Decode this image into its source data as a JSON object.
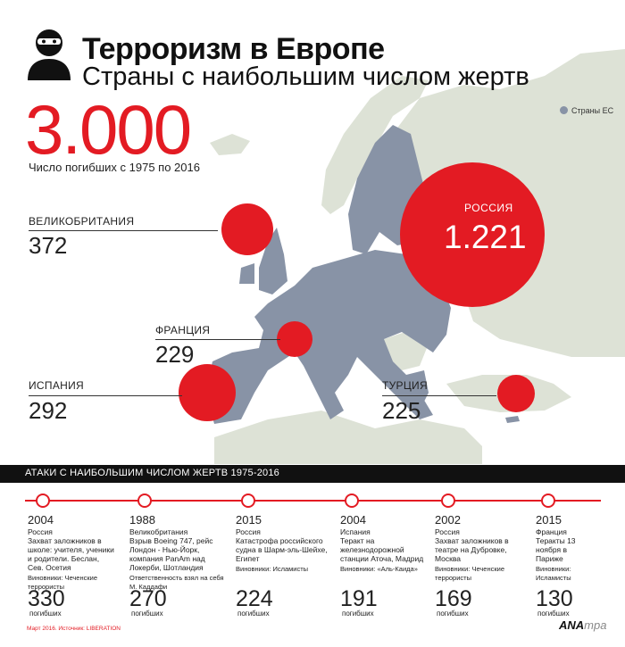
{
  "header": {
    "title": "Терроризм в Европе",
    "subtitle": "Страны с наибольшим числом жертв"
  },
  "total": {
    "value": "3.000",
    "label": "Число погибших с 1975 по 2016"
  },
  "legend": {
    "label": "Страны ЕС",
    "color": "#8893a6"
  },
  "countries": {
    "uk": {
      "name": "ВЕЛИКОБРИТАНИЯ",
      "value": "372"
    },
    "france": {
      "name": "ФРАНЦИЯ",
      "value": "229"
    },
    "spain": {
      "name": "ИСПАНИЯ",
      "value": "292"
    },
    "turkey": {
      "name": "ТУРЦИЯ",
      "value": "225"
    },
    "russia": {
      "name": "РОССИЯ",
      "value": "1.221"
    }
  },
  "colors": {
    "accent": "#e31b23",
    "eu": "#8893a6",
    "land": "#dde2d6",
    "sea": "#ffffff"
  },
  "attacks": {
    "heading": "АТАКИ С НАИБОЛЬШИМ ЧИСЛОМ ЖЕРТВ 1975-2016",
    "unit": "погибших",
    "events": [
      {
        "year": "2004",
        "desc": "Россия\nЗахват заложников в школе: учителя, ученики и родители. Беслан, Сев. Осетия",
        "note": "Виновники: Чеченские террористы",
        "num": "330"
      },
      {
        "year": "1988",
        "desc": "Великобритания\nВзрыв Boeing 747, рейс Лондон - Нью-Йорк, компания PanAm над Локерби, Шотландия",
        "note": "Ответственность взял на себя М. Каддафи",
        "num": "270"
      },
      {
        "year": "2015",
        "desc": "Россия\nКатастрофа российского судна в Шарм-эль-Шейхе, Египет",
        "note": "Виновники: Исламисты",
        "num": "224"
      },
      {
        "year": "2004",
        "desc": "Испания\nТеракт на железнодорожной станции Аточа, Мадрид",
        "note": "Виновники: «Аль-Каида»",
        "num": "191"
      },
      {
        "year": "2002",
        "desc": "Россия\nЗахват заложников в театре на Дубровке, Москва",
        "note": "Виновники: Чеченские террористы",
        "num": "169"
      },
      {
        "year": "2015",
        "desc": "Франция\nТеракты 13 ноября в Париже",
        "note": "Виновники: Исламисты",
        "num": "130"
      }
    ]
  },
  "source": "Март 2016. Источник: LIBERATION",
  "brand": {
    "main": "ANA",
    "accent": "mpa"
  }
}
